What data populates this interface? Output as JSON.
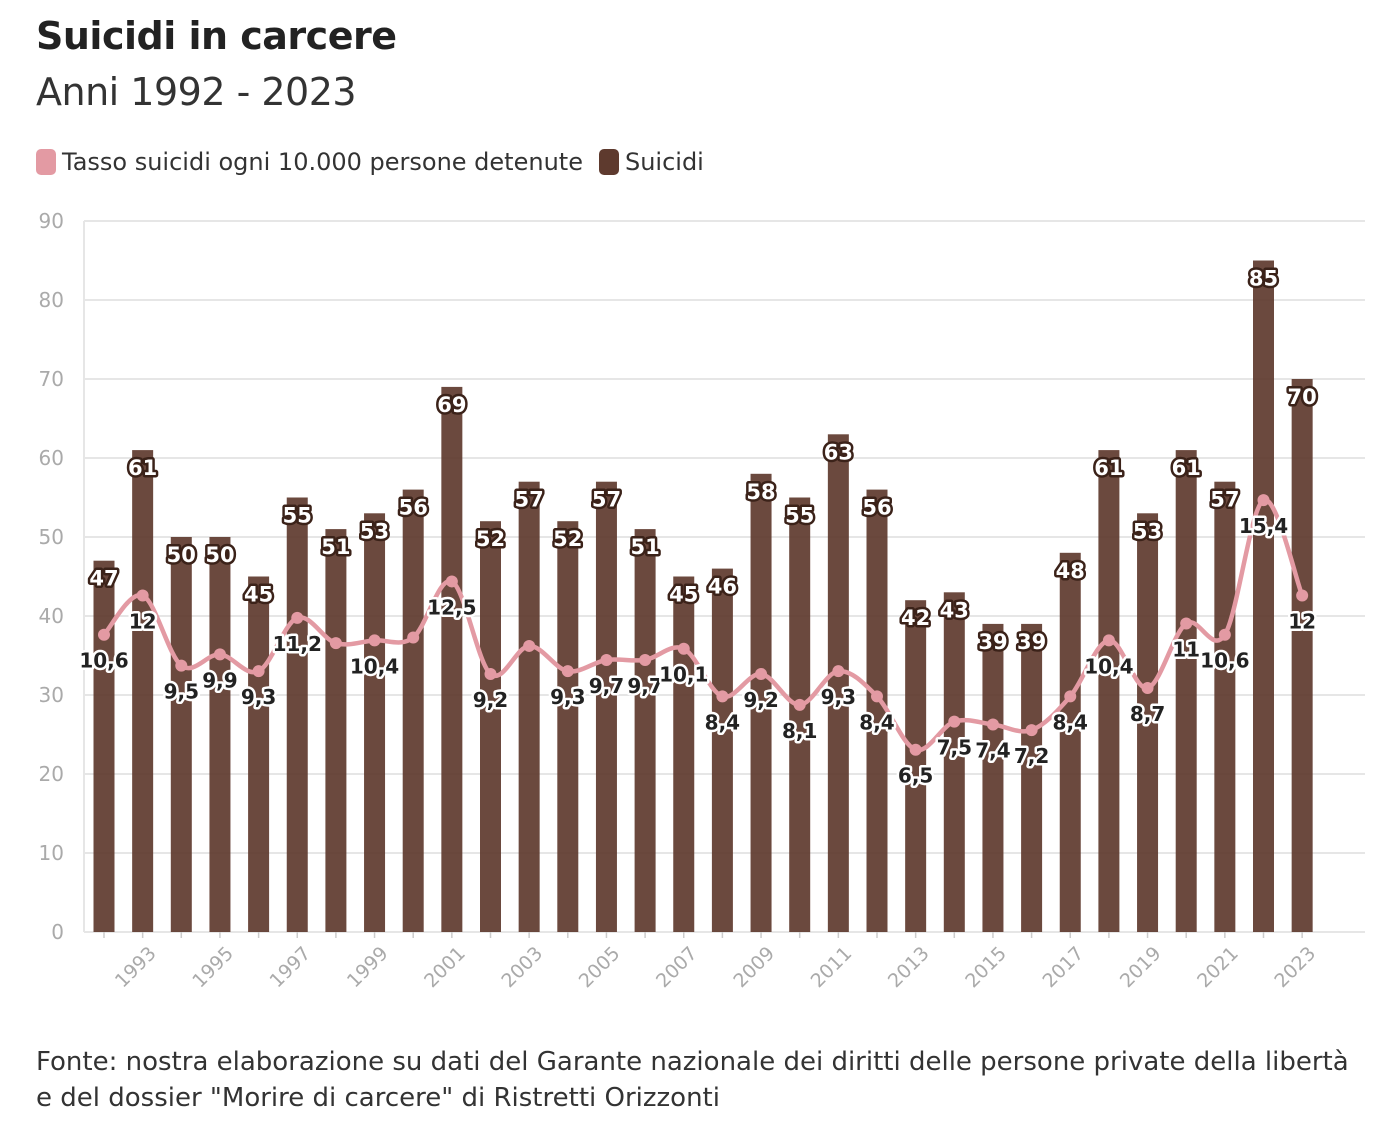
{
  "title": "Suicidi in carcere",
  "subtitle": "Anni 1992 - 2023",
  "legend": [
    {
      "label": "Tasso suicidi ogni 10.000 persone detenute",
      "color": "#e39aa3"
    },
    {
      "label": "Suicidi",
      "color": "#5e3a2e"
    }
  ],
  "footer": "Fonte: nostra elaborazione su dati del Garante nazionale dei diritti delle persone private della libertà e del dossier \"Morire di carcere\" di Ristretti Orizzonti",
  "colors": {
    "bar": "#5e3a2e",
    "line": "#e39aa3",
    "grid": "#e6e6e6",
    "axis_text": "#aaaaaa"
  },
  "chart_data": {
    "type": "bar",
    "categories": [
      "1992",
      "1993",
      "1994",
      "1995",
      "1996",
      "1997",
      "1998",
      "1999",
      "2000",
      "2001",
      "2002",
      "2003",
      "2004",
      "2005",
      "2006",
      "2007",
      "2008",
      "2009",
      "2010",
      "2011",
      "2012",
      "2013",
      "2014",
      "2015",
      "2016",
      "2017",
      "2018",
      "2019",
      "2020",
      "2021",
      "2022",
      "2023"
    ],
    "x_tick_labels": [
      "1993",
      "1995",
      "1997",
      "1999",
      "2001",
      "2003",
      "2005",
      "2007",
      "2009",
      "2011",
      "2013",
      "2015",
      "2017",
      "2019",
      "2021",
      "2023"
    ],
    "ylim": [
      0,
      90
    ],
    "yticks": [
      0,
      10,
      20,
      30,
      40,
      50,
      60,
      70,
      80,
      90
    ],
    "series": [
      {
        "name": "Suicidi",
        "type": "bar",
        "values": [
          47,
          61,
          50,
          50,
          45,
          55,
          51,
          53,
          56,
          69,
          52,
          57,
          52,
          57,
          51,
          45,
          46,
          58,
          55,
          63,
          56,
          42,
          43,
          39,
          39,
          48,
          61,
          53,
          61,
          57,
          85,
          70
        ],
        "labels": [
          "47",
          "61",
          "50",
          "50",
          "45",
          "55",
          "51",
          "53",
          "56",
          "69",
          "52",
          "57",
          "52",
          "57",
          "51",
          "45",
          "46",
          "58",
          "55",
          "63",
          "56",
          "42",
          "43",
          "39",
          "39",
          "48",
          "61",
          "53",
          "61",
          "57",
          "85",
          "70"
        ]
      },
      {
        "name": "Tasso suicidi ogni 10.000 persone detenute",
        "type": "line",
        "values": [
          10.6,
          12,
          9.5,
          9.9,
          9.3,
          11.2,
          10.3,
          10.4,
          10.5,
          12.5,
          9.2,
          10.2,
          9.3,
          9.7,
          9.7,
          10.1,
          8.4,
          9.2,
          8.1,
          9.3,
          8.4,
          6.5,
          7.5,
          7.4,
          7.2,
          8.4,
          10.4,
          8.7,
          11,
          10.6,
          15.4,
          12
        ],
        "labels": [
          "10,6",
          "12",
          "9,5",
          "9,9",
          "9,3",
          "11,2",
          "",
          "10,4",
          "",
          "12,5",
          "9,2",
          "",
          "9,3",
          "9,7",
          "9,7",
          "10,1",
          "8,4",
          "9,2",
          "8,1",
          "9,3",
          "8,4",
          "6,5",
          "7,5",
          "7,4",
          "7,2",
          "8,4",
          "10,4",
          "8,7",
          "11",
          "10,6",
          "15,4",
          "12"
        ]
      }
    ],
    "grid": true,
    "legend_position": "top-left"
  }
}
